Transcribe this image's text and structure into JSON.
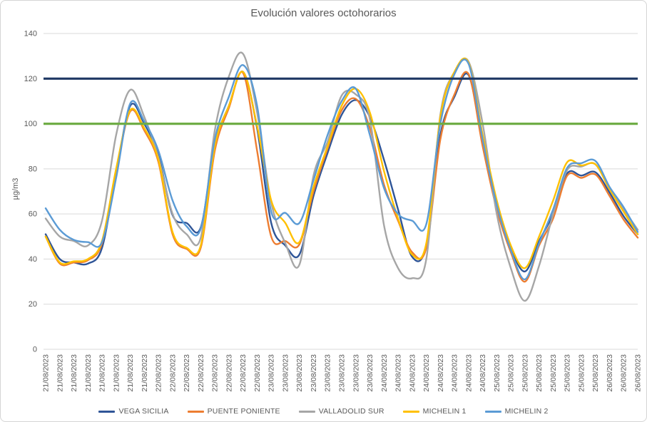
{
  "chart_data": {
    "type": "line",
    "title": "Evolución valores octohorarios",
    "ylabel": "µg/m3",
    "ylim": [
      0,
      140
    ],
    "y_ticks": [
      0,
      20,
      40,
      60,
      80,
      100,
      120,
      140
    ],
    "grid": true,
    "legend_position": "bottom",
    "x_labels": [
      "21/08/2023",
      "21/08/2023",
      "21/08/2023",
      "21/08/2023",
      "21/08/2023",
      "21/08/2023",
      "21/08/2023",
      "21/08/2023",
      "22/08/2023",
      "22/08/2023",
      "22/08/2023",
      "22/08/2023",
      "22/08/2023",
      "22/08/2023",
      "22/08/2023",
      "22/08/2023",
      "23/08/2023",
      "23/08/2023",
      "23/08/2023",
      "23/08/2023",
      "23/08/2023",
      "23/08/2023",
      "23/08/2023",
      "23/08/2023",
      "24/08/2023",
      "24/08/2023",
      "24/08/2023",
      "24/08/2023",
      "24/08/2023",
      "24/08/2023",
      "24/08/2023",
      "24/08/2023",
      "25/08/2023",
      "25/08/2023",
      "25/08/2023",
      "25/08/2023",
      "25/08/2023",
      "25/08/2023",
      "25/08/2023",
      "25/08/2023",
      "26/08/2023",
      "26/08/2023",
      "26/08/2023"
    ],
    "series": [
      {
        "name": "VEGA SICILIA",
        "color": "#2F5597",
        "values": [
          51,
          40,
          38.5,
          38,
          45,
          78,
          108,
          100,
          86,
          59.5,
          56,
          54,
          91,
          108,
          123,
          98,
          56,
          46,
          42,
          68,
          87,
          104,
          110.5,
          103,
          84,
          62,
          41,
          46,
          95,
          112,
          121.5,
          92,
          64,
          45,
          34.5,
          48,
          60,
          78,
          77,
          78.5,
          69.5,
          59,
          51
        ]
      },
      {
        "name": "PUENTE PONIENTE",
        "color": "#ED7D31",
        "values": [
          50,
          38,
          38.5,
          39.5,
          47,
          79,
          105.5,
          97,
          83,
          51,
          44.5,
          45,
          88,
          107,
          122.5,
          88,
          50,
          48,
          46.5,
          70,
          89,
          106,
          111,
          98,
          73,
          57,
          43,
          45,
          93,
          113,
          122,
          90,
          62,
          43,
          30,
          46,
          58,
          77,
          76,
          77.5,
          68,
          57.5,
          49.5
        ]
      },
      {
        "name": "VALLADOLID SUR",
        "color": "#A6A6A6",
        "values": [
          58,
          50,
          48,
          46,
          57,
          95,
          115,
          103,
          85,
          60,
          51,
          49.5,
          97,
          121,
          131,
          105,
          65,
          47,
          37.5,
          77,
          92,
          112.5,
          113,
          102,
          55,
          36,
          31.5,
          40,
          104,
          123,
          127.5,
          100,
          60,
          36,
          21.5,
          37,
          60,
          79.5,
          81,
          82,
          71,
          62,
          53
        ]
      },
      {
        "name": "MICHELIN 1",
        "color": "#FFC000",
        "values": [
          50,
          38.5,
          39,
          40,
          48,
          80,
          106,
          98,
          84,
          52,
          45,
          46,
          90,
          108,
          123,
          99,
          66,
          56,
          47.5,
          72,
          90,
          108,
          115.5,
          105,
          79,
          58,
          42,
          47,
          103,
          123,
          127,
          95,
          66,
          46,
          36,
          50,
          66,
          83,
          81.5,
          82,
          71,
          61,
          51
        ]
      },
      {
        "name": "MICHELIN 2",
        "color": "#5B9BD5",
        "values": [
          62.5,
          53,
          48.5,
          47.5,
          47.5,
          76,
          109,
          101,
          88,
          66,
          54.5,
          53.5,
          93,
          112,
          126,
          108,
          61,
          60.5,
          56,
          75,
          95,
          110,
          115.5,
          95,
          71.5,
          60,
          57,
          55.5,
          100,
          122,
          126.5,
          93,
          64,
          44,
          31,
          47,
          62,
          80.5,
          82.5,
          83.5,
          72,
          63,
          52
        ]
      }
    ],
    "reference_lines": [
      {
        "name": "limit-120",
        "value": 120,
        "color": "#1F3864"
      },
      {
        "name": "limit-100",
        "value": 100,
        "color": "#70AD47"
      }
    ],
    "grid_color": "#D9D9D9",
    "text_color": "#595959"
  }
}
